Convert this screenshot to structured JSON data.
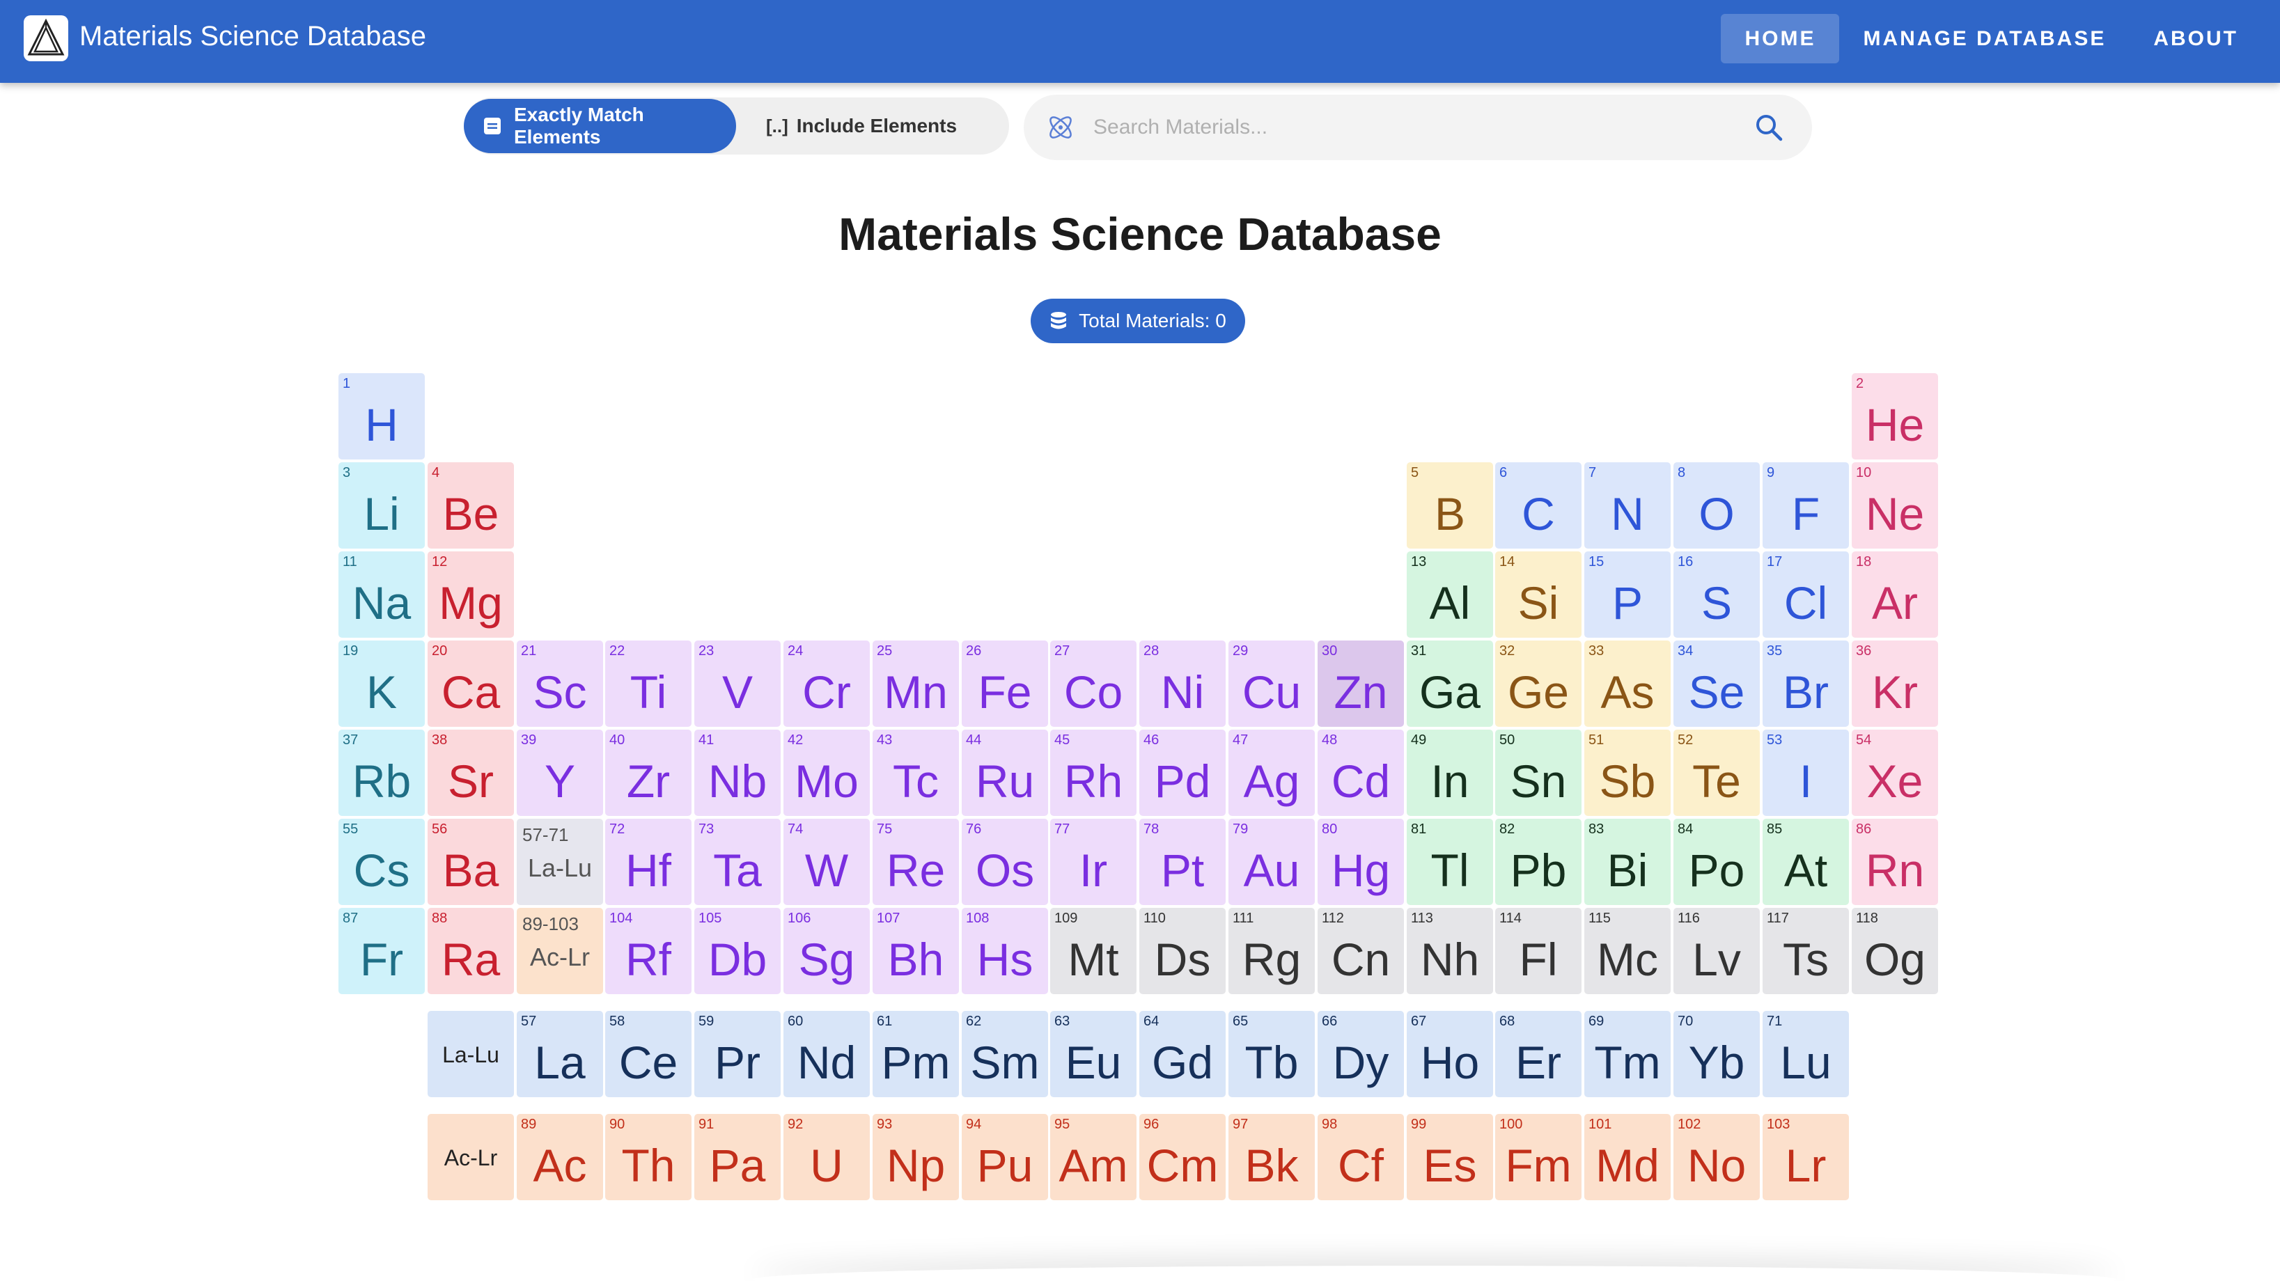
{
  "header": {
    "app_title": "Materials Science Database",
    "logo_icon": "triangle-logo-icon",
    "nav": [
      {
        "label": "HOME",
        "active": true
      },
      {
        "label": "MANAGE DATABASE",
        "active": false
      },
      {
        "label": "ABOUT",
        "active": false
      }
    ]
  },
  "toolbar": {
    "exact_label": "Exactly Match Elements",
    "include_label": "Include Elements",
    "include_icon_text": "[..]",
    "search_placeholder": "Search Materials...",
    "search_value": ""
  },
  "main": {
    "title": "Materials Science Database",
    "total_label": "Total Materials: 0"
  },
  "colors": {
    "brand": "#2f66c8",
    "alkali": {
      "bg": "#cff2fa",
      "fg": "#1f6f86"
    },
    "alkaline": {
      "bg": "#fbd9dc",
      "fg": "#c8202f"
    },
    "transition": {
      "bg": "#eedcfb",
      "fg": "#7a2ee0"
    },
    "post": {
      "bg": "#d5f5e0",
      "fg": "#15301d"
    },
    "metalloid": {
      "bg": "#fcf0cc",
      "fg": "#8a5516"
    },
    "nonmetal": {
      "bg": "#dbe6fb",
      "fg": "#2e55d8"
    },
    "noble": {
      "bg": "#fcdde9",
      "fg": "#c92f66"
    },
    "unknown": {
      "bg": "#e5e5e8",
      "fg": "#333333"
    },
    "lanthanide": {
      "bg": "#d8e5f8",
      "fg": "#16305a"
    },
    "actinide": {
      "bg": "#fce0cc",
      "fg": "#c22f1a"
    },
    "range": {
      "bg": "#e6e6ee",
      "fg": "#555555"
    },
    "range_act": {
      "bg": "#fce2cc",
      "fg": "#555555"
    },
    "zn_highlight": {
      "bg": "#dcc7ec",
      "fg": "#7a2ee0"
    }
  },
  "elements": [
    {
      "n": "1",
      "s": "H",
      "r": 1,
      "c": 1,
      "cat": "nonmetal"
    },
    {
      "n": "2",
      "s": "He",
      "r": 1,
      "c": 18,
      "cat": "noble"
    },
    {
      "n": "3",
      "s": "Li",
      "r": 2,
      "c": 1,
      "cat": "alkali"
    },
    {
      "n": "4",
      "s": "Be",
      "r": 2,
      "c": 2,
      "cat": "alkaline"
    },
    {
      "n": "5",
      "s": "B",
      "r": 2,
      "c": 13,
      "cat": "metalloid"
    },
    {
      "n": "6",
      "s": "C",
      "r": 2,
      "c": 14,
      "cat": "nonmetal"
    },
    {
      "n": "7",
      "s": "N",
      "r": 2,
      "c": 15,
      "cat": "nonmetal"
    },
    {
      "n": "8",
      "s": "O",
      "r": 2,
      "c": 16,
      "cat": "nonmetal"
    },
    {
      "n": "9",
      "s": "F",
      "r": 2,
      "c": 17,
      "cat": "nonmetal"
    },
    {
      "n": "10",
      "s": "Ne",
      "r": 2,
      "c": 18,
      "cat": "noble"
    },
    {
      "n": "11",
      "s": "Na",
      "r": 3,
      "c": 1,
      "cat": "alkali"
    },
    {
      "n": "12",
      "s": "Mg",
      "r": 3,
      "c": 2,
      "cat": "alkaline"
    },
    {
      "n": "13",
      "s": "Al",
      "r": 3,
      "c": 13,
      "cat": "post"
    },
    {
      "n": "14",
      "s": "Si",
      "r": 3,
      "c": 14,
      "cat": "metalloid"
    },
    {
      "n": "15",
      "s": "P",
      "r": 3,
      "c": 15,
      "cat": "nonmetal"
    },
    {
      "n": "16",
      "s": "S",
      "r": 3,
      "c": 16,
      "cat": "nonmetal"
    },
    {
      "n": "17",
      "s": "Cl",
      "r": 3,
      "c": 17,
      "cat": "nonmetal"
    },
    {
      "n": "18",
      "s": "Ar",
      "r": 3,
      "c": 18,
      "cat": "noble"
    },
    {
      "n": "19",
      "s": "K",
      "r": 4,
      "c": 1,
      "cat": "alkali"
    },
    {
      "n": "20",
      "s": "Ca",
      "r": 4,
      "c": 2,
      "cat": "alkaline"
    },
    {
      "n": "21",
      "s": "Sc",
      "r": 4,
      "c": 3,
      "cat": "transition"
    },
    {
      "n": "22",
      "s": "Ti",
      "r": 4,
      "c": 4,
      "cat": "transition"
    },
    {
      "n": "23",
      "s": "V",
      "r": 4,
      "c": 5,
      "cat": "transition"
    },
    {
      "n": "24",
      "s": "Cr",
      "r": 4,
      "c": 6,
      "cat": "transition"
    },
    {
      "n": "25",
      "s": "Mn",
      "r": 4,
      "c": 7,
      "cat": "transition"
    },
    {
      "n": "26",
      "s": "Fe",
      "r": 4,
      "c": 8,
      "cat": "transition"
    },
    {
      "n": "27",
      "s": "Co",
      "r": 4,
      "c": 9,
      "cat": "transition"
    },
    {
      "n": "28",
      "s": "Ni",
      "r": 4,
      "c": 10,
      "cat": "transition"
    },
    {
      "n": "29",
      "s": "Cu",
      "r": 4,
      "c": 11,
      "cat": "transition"
    },
    {
      "n": "30",
      "s": "Zn",
      "r": 4,
      "c": 12,
      "cat": "zn_highlight"
    },
    {
      "n": "31",
      "s": "Ga",
      "r": 4,
      "c": 13,
      "cat": "post"
    },
    {
      "n": "32",
      "s": "Ge",
      "r": 4,
      "c": 14,
      "cat": "metalloid"
    },
    {
      "n": "33",
      "s": "As",
      "r": 4,
      "c": 15,
      "cat": "metalloid"
    },
    {
      "n": "34",
      "s": "Se",
      "r": 4,
      "c": 16,
      "cat": "nonmetal"
    },
    {
      "n": "35",
      "s": "Br",
      "r": 4,
      "c": 17,
      "cat": "nonmetal"
    },
    {
      "n": "36",
      "s": "Kr",
      "r": 4,
      "c": 18,
      "cat": "noble"
    },
    {
      "n": "37",
      "s": "Rb",
      "r": 5,
      "c": 1,
      "cat": "alkali"
    },
    {
      "n": "38",
      "s": "Sr",
      "r": 5,
      "c": 2,
      "cat": "alkaline"
    },
    {
      "n": "39",
      "s": "Y",
      "r": 5,
      "c": 3,
      "cat": "transition"
    },
    {
      "n": "40",
      "s": "Zr",
      "r": 5,
      "c": 4,
      "cat": "transition"
    },
    {
      "n": "41",
      "s": "Nb",
      "r": 5,
      "c": 5,
      "cat": "transition"
    },
    {
      "n": "42",
      "s": "Mo",
      "r": 5,
      "c": 6,
      "cat": "transition"
    },
    {
      "n": "43",
      "s": "Tc",
      "r": 5,
      "c": 7,
      "cat": "transition"
    },
    {
      "n": "44",
      "s": "Ru",
      "r": 5,
      "c": 8,
      "cat": "transition"
    },
    {
      "n": "45",
      "s": "Rh",
      "r": 5,
      "c": 9,
      "cat": "transition"
    },
    {
      "n": "46",
      "s": "Pd",
      "r": 5,
      "c": 10,
      "cat": "transition"
    },
    {
      "n": "47",
      "s": "Ag",
      "r": 5,
      "c": 11,
      "cat": "transition"
    },
    {
      "n": "48",
      "s": "Cd",
      "r": 5,
      "c": 12,
      "cat": "transition"
    },
    {
      "n": "49",
      "s": "In",
      "r": 5,
      "c": 13,
      "cat": "post"
    },
    {
      "n": "50",
      "s": "Sn",
      "r": 5,
      "c": 14,
      "cat": "post"
    },
    {
      "n": "51",
      "s": "Sb",
      "r": 5,
      "c": 15,
      "cat": "metalloid"
    },
    {
      "n": "52",
      "s": "Te",
      "r": 5,
      "c": 16,
      "cat": "metalloid"
    },
    {
      "n": "53",
      "s": "I",
      "r": 5,
      "c": 17,
      "cat": "nonmetal"
    },
    {
      "n": "54",
      "s": "Xe",
      "r": 5,
      "c": 18,
      "cat": "noble"
    },
    {
      "n": "55",
      "s": "Cs",
      "r": 6,
      "c": 1,
      "cat": "alkali"
    },
    {
      "n": "56",
      "s": "Ba",
      "r": 6,
      "c": 2,
      "cat": "alkaline"
    },
    {
      "n": "57-71",
      "s": "La-Lu",
      "r": 6,
      "c": 3,
      "cat": "range",
      "range": true
    },
    {
      "n": "72",
      "s": "Hf",
      "r": 6,
      "c": 4,
      "cat": "transition"
    },
    {
      "n": "73",
      "s": "Ta",
      "r": 6,
      "c": 5,
      "cat": "transition"
    },
    {
      "n": "74",
      "s": "W",
      "r": 6,
      "c": 6,
      "cat": "transition"
    },
    {
      "n": "75",
      "s": "Re",
      "r": 6,
      "c": 7,
      "cat": "transition"
    },
    {
      "n": "76",
      "s": "Os",
      "r": 6,
      "c": 8,
      "cat": "transition"
    },
    {
      "n": "77",
      "s": "Ir",
      "r": 6,
      "c": 9,
      "cat": "transition"
    },
    {
      "n": "78",
      "s": "Pt",
      "r": 6,
      "c": 10,
      "cat": "transition"
    },
    {
      "n": "79",
      "s": "Au",
      "r": 6,
      "c": 11,
      "cat": "transition"
    },
    {
      "n": "80",
      "s": "Hg",
      "r": 6,
      "c": 12,
      "cat": "transition"
    },
    {
      "n": "81",
      "s": "Tl",
      "r": 6,
      "c": 13,
      "cat": "post"
    },
    {
      "n": "82",
      "s": "Pb",
      "r": 6,
      "c": 14,
      "cat": "post"
    },
    {
      "n": "83",
      "s": "Bi",
      "r": 6,
      "c": 15,
      "cat": "post"
    },
    {
      "n": "84",
      "s": "Po",
      "r": 6,
      "c": 16,
      "cat": "post"
    },
    {
      "n": "85",
      "s": "At",
      "r": 6,
      "c": 17,
      "cat": "post"
    },
    {
      "n": "86",
      "s": "Rn",
      "r": 6,
      "c": 18,
      "cat": "noble"
    },
    {
      "n": "87",
      "s": "Fr",
      "r": 7,
      "c": 1,
      "cat": "alkali"
    },
    {
      "n": "88",
      "s": "Ra",
      "r": 7,
      "c": 2,
      "cat": "alkaline"
    },
    {
      "n": "89-103",
      "s": "Ac-Lr",
      "r": 7,
      "c": 3,
      "cat": "range_act",
      "range": true
    },
    {
      "n": "104",
      "s": "Rf",
      "r": 7,
      "c": 4,
      "cat": "transition"
    },
    {
      "n": "105",
      "s": "Db",
      "r": 7,
      "c": 5,
      "cat": "transition"
    },
    {
      "n": "106",
      "s": "Sg",
      "r": 7,
      "c": 6,
      "cat": "transition"
    },
    {
      "n": "107",
      "s": "Bh",
      "r": 7,
      "c": 7,
      "cat": "transition"
    },
    {
      "n": "108",
      "s": "Hs",
      "r": 7,
      "c": 8,
      "cat": "transition"
    },
    {
      "n": "109",
      "s": "Mt",
      "r": 7,
      "c": 9,
      "cat": "unknown"
    },
    {
      "n": "110",
      "s": "Ds",
      "r": 7,
      "c": 10,
      "cat": "unknown"
    },
    {
      "n": "111",
      "s": "Rg",
      "r": 7,
      "c": 11,
      "cat": "unknown"
    },
    {
      "n": "112",
      "s": "Cn",
      "r": 7,
      "c": 12,
      "cat": "unknown"
    },
    {
      "n": "113",
      "s": "Nh",
      "r": 7,
      "c": 13,
      "cat": "unknown"
    },
    {
      "n": "114",
      "s": "Fl",
      "r": 7,
      "c": 14,
      "cat": "unknown"
    },
    {
      "n": "115",
      "s": "Mc",
      "r": 7,
      "c": 15,
      "cat": "unknown"
    },
    {
      "n": "116",
      "s": "Lv",
      "r": 7,
      "c": 16,
      "cat": "unknown"
    },
    {
      "n": "117",
      "s": "Ts",
      "r": 7,
      "c": 17,
      "cat": "unknown"
    },
    {
      "n": "118",
      "s": "Og",
      "r": 7,
      "c": 18,
      "cat": "unknown"
    },
    {
      "n": "",
      "s": "La-Lu",
      "r": 8,
      "c": 2,
      "cat": "lanthanide",
      "label": true
    },
    {
      "n": "57",
      "s": "La",
      "r": 8,
      "c": 3,
      "cat": "lanthanide"
    },
    {
      "n": "58",
      "s": "Ce",
      "r": 8,
      "c": 4,
      "cat": "lanthanide"
    },
    {
      "n": "59",
      "s": "Pr",
      "r": 8,
      "c": 5,
      "cat": "lanthanide"
    },
    {
      "n": "60",
      "s": "Nd",
      "r": 8,
      "c": 6,
      "cat": "lanthanide"
    },
    {
      "n": "61",
      "s": "Pm",
      "r": 8,
      "c": 7,
      "cat": "lanthanide"
    },
    {
      "n": "62",
      "s": "Sm",
      "r": 8,
      "c": 8,
      "cat": "lanthanide"
    },
    {
      "n": "63",
      "s": "Eu",
      "r": 8,
      "c": 9,
      "cat": "lanthanide"
    },
    {
      "n": "64",
      "s": "Gd",
      "r": 8,
      "c": 10,
      "cat": "lanthanide"
    },
    {
      "n": "65",
      "s": "Tb",
      "r": 8,
      "c": 11,
      "cat": "lanthanide"
    },
    {
      "n": "66",
      "s": "Dy",
      "r": 8,
      "c": 12,
      "cat": "lanthanide"
    },
    {
      "n": "67",
      "s": "Ho",
      "r": 8,
      "c": 13,
      "cat": "lanthanide"
    },
    {
      "n": "68",
      "s": "Er",
      "r": 8,
      "c": 14,
      "cat": "lanthanide"
    },
    {
      "n": "69",
      "s": "Tm",
      "r": 8,
      "c": 15,
      "cat": "lanthanide"
    },
    {
      "n": "70",
      "s": "Yb",
      "r": 8,
      "c": 16,
      "cat": "lanthanide"
    },
    {
      "n": "71",
      "s": "Lu",
      "r": 8,
      "c": 17,
      "cat": "lanthanide"
    },
    {
      "n": "",
      "s": "Ac-Lr",
      "r": 9,
      "c": 2,
      "cat": "actinide",
      "label": true
    },
    {
      "n": "89",
      "s": "Ac",
      "r": 9,
      "c": 3,
      "cat": "actinide"
    },
    {
      "n": "90",
      "s": "Th",
      "r": 9,
      "c": 4,
      "cat": "actinide"
    },
    {
      "n": "91",
      "s": "Pa",
      "r": 9,
      "c": 5,
      "cat": "actinide"
    },
    {
      "n": "92",
      "s": "U",
      "r": 9,
      "c": 6,
      "cat": "actinide"
    },
    {
      "n": "93",
      "s": "Np",
      "r": 9,
      "c": 7,
      "cat": "actinide"
    },
    {
      "n": "94",
      "s": "Pu",
      "r": 9,
      "c": 8,
      "cat": "actinide"
    },
    {
      "n": "95",
      "s": "Am",
      "r": 9,
      "c": 9,
      "cat": "actinide"
    },
    {
      "n": "96",
      "s": "Cm",
      "r": 9,
      "c": 10,
      "cat": "actinide"
    },
    {
      "n": "97",
      "s": "Bk",
      "r": 9,
      "c": 11,
      "cat": "actinide"
    },
    {
      "n": "98",
      "s": "Cf",
      "r": 9,
      "c": 12,
      "cat": "actinide"
    },
    {
      "n": "99",
      "s": "Es",
      "r": 9,
      "c": 13,
      "cat": "actinide"
    },
    {
      "n": "100",
      "s": "Fm",
      "r": 9,
      "c": 14,
      "cat": "actinide"
    },
    {
      "n": "101",
      "s": "Md",
      "r": 9,
      "c": 15,
      "cat": "actinide"
    },
    {
      "n": "102",
      "s": "No",
      "r": 9,
      "c": 16,
      "cat": "actinide"
    },
    {
      "n": "103",
      "s": "Lr",
      "r": 9,
      "c": 17,
      "cat": "actinide"
    }
  ]
}
